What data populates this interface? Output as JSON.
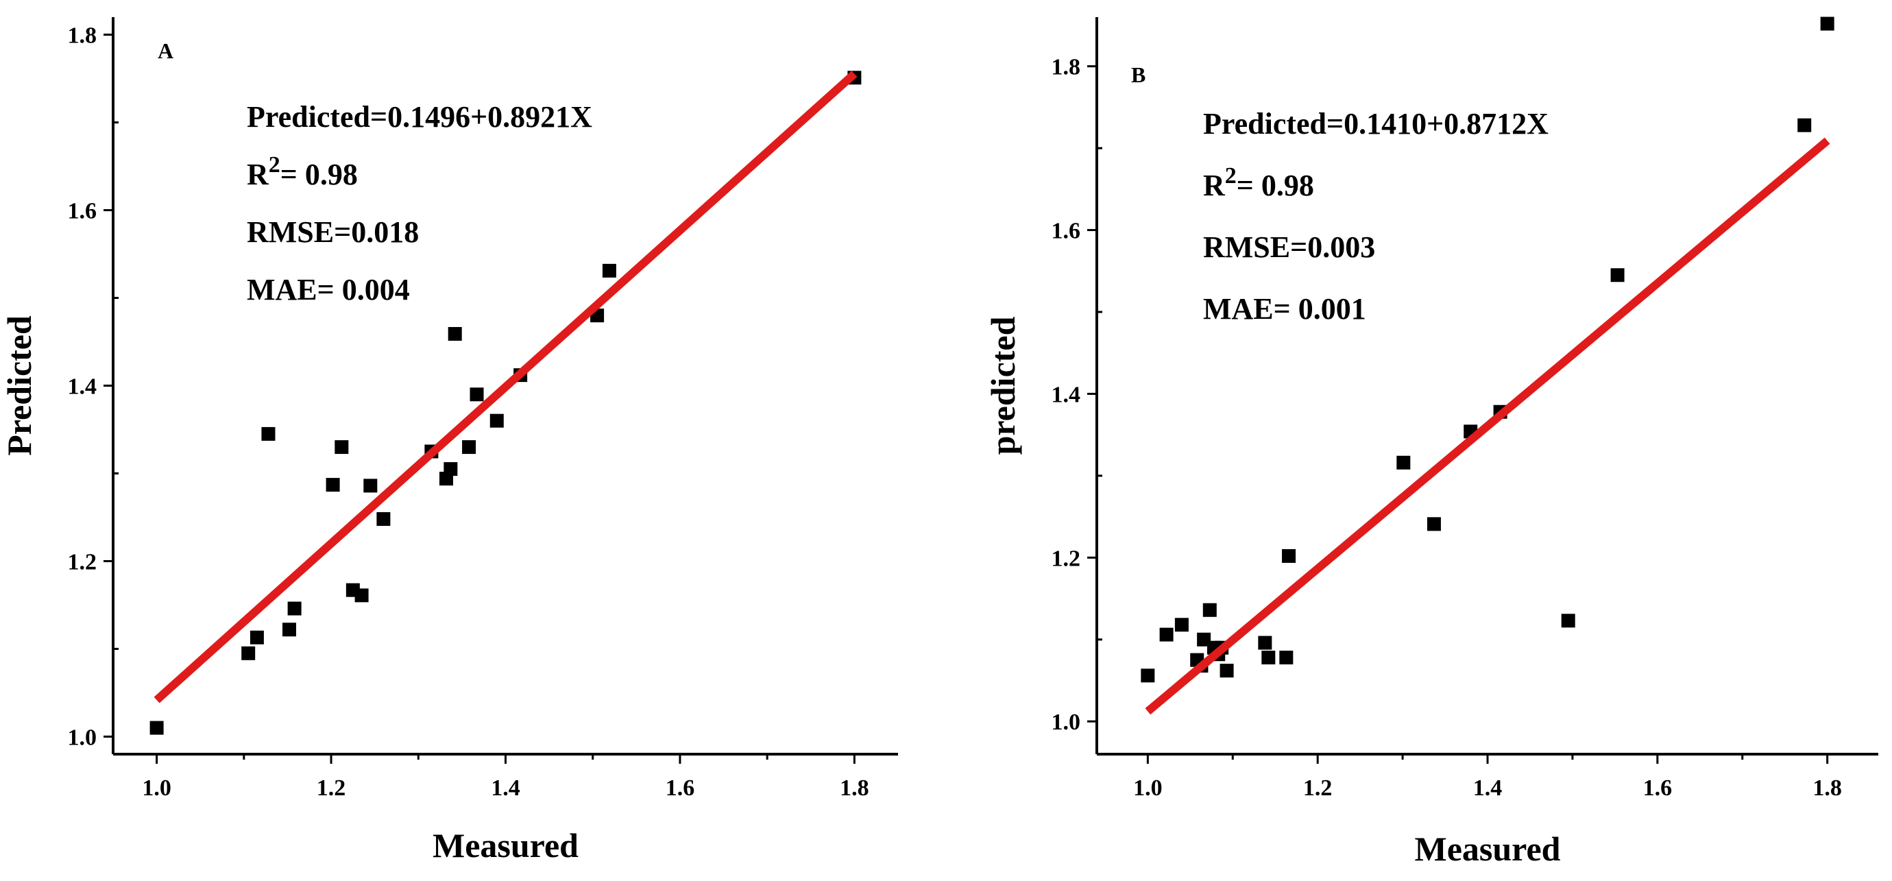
{
  "chart_data": [
    {
      "panel": "A",
      "type": "scatter",
      "xlabel": "Measured",
      "ylabel": "Predicted",
      "xlim": [
        0.95,
        1.85
      ],
      "ylim": [
        0.98,
        1.82
      ],
      "xticks": [
        1.0,
        1.2,
        1.4,
        1.6,
        1.8
      ],
      "yticks": [
        1.0,
        1.2,
        1.4,
        1.6,
        1.8
      ],
      "xtick_labels": [
        "1.0",
        "1.2",
        "1.4",
        "1.6",
        "1.8"
      ],
      "ytick_labels": [
        "1.0",
        "1.2",
        "1.4",
        "1.6",
        "1.8"
      ],
      "annotations": {
        "equation": "Predicted=0.1496+0.8921X",
        "r2_prefix": "R",
        "r2_sup": "2",
        "r2_value": "= 0.98",
        "rmse": "RMSE=0.018",
        "mae": "MAE= 0.004"
      },
      "fit": {
        "intercept": 0.1496,
        "slope": 0.8921,
        "x_range": [
          1.0,
          1.8
        ]
      },
      "points": [
        [
          1.0,
          1.01
        ],
        [
          1.105,
          1.095
        ],
        [
          1.115,
          1.113
        ],
        [
          1.128,
          1.345
        ],
        [
          1.152,
          1.122
        ],
        [
          1.158,
          1.146
        ],
        [
          1.202,
          1.287
        ],
        [
          1.212,
          1.33
        ],
        [
          1.225,
          1.167
        ],
        [
          1.235,
          1.161
        ],
        [
          1.245,
          1.286
        ],
        [
          1.26,
          1.248
        ],
        [
          1.315,
          1.325
        ],
        [
          1.332,
          1.294
        ],
        [
          1.337,
          1.305
        ],
        [
          1.342,
          1.459
        ],
        [
          1.358,
          1.33
        ],
        [
          1.367,
          1.39
        ],
        [
          1.39,
          1.36
        ],
        [
          1.417,
          1.412
        ],
        [
          1.505,
          1.48
        ],
        [
          1.519,
          1.531
        ],
        [
          1.8,
          1.751
        ]
      ]
    },
    {
      "panel": "B",
      "type": "scatter",
      "xlabel": "Measured",
      "ylabel": "predicted",
      "xlim": [
        0.94,
        1.86
      ],
      "ylim": [
        0.96,
        1.86
      ],
      "xticks": [
        1.0,
        1.2,
        1.4,
        1.6,
        1.8
      ],
      "yticks": [
        1.0,
        1.2,
        1.4,
        1.6,
        1.8
      ],
      "xtick_labels": [
        "1.0",
        "1.2",
        "1.4",
        "1.6",
        "1.8"
      ],
      "ytick_labels": [
        "1.0",
        "1.2",
        "1.4",
        "1.6",
        "1.8"
      ],
      "annotations": {
        "equation": "Predicted=0.1410+0.8712X",
        "r2_prefix": "R",
        "r2_sup": "2",
        "r2_value": "= 0.98",
        "rmse": "RMSE=0.003",
        "mae": "MAE= 0.001"
      },
      "fit": {
        "intercept": 0.141,
        "slope": 0.8712,
        "x_range": [
          1.0,
          1.8
        ]
      },
      "points": [
        [
          1.0,
          1.056
        ],
        [
          1.022,
          1.106
        ],
        [
          1.04,
          1.118
        ],
        [
          1.058,
          1.075
        ],
        [
          1.063,
          1.068
        ],
        [
          1.066,
          1.1
        ],
        [
          1.073,
          1.136
        ],
        [
          1.078,
          1.09
        ],
        [
          1.083,
          1.082
        ],
        [
          1.087,
          1.09
        ],
        [
          1.093,
          1.062
        ],
        [
          1.138,
          1.096
        ],
        [
          1.142,
          1.078
        ],
        [
          1.163,
          1.078
        ],
        [
          1.166,
          1.202
        ],
        [
          1.301,
          1.316
        ],
        [
          1.337,
          1.241
        ],
        [
          1.38,
          1.354
        ],
        [
          1.415,
          1.378
        ],
        [
          1.495,
          1.123
        ],
        [
          1.553,
          1.545
        ],
        [
          1.773,
          1.728
        ],
        [
          1.8,
          1.852
        ]
      ]
    }
  ]
}
